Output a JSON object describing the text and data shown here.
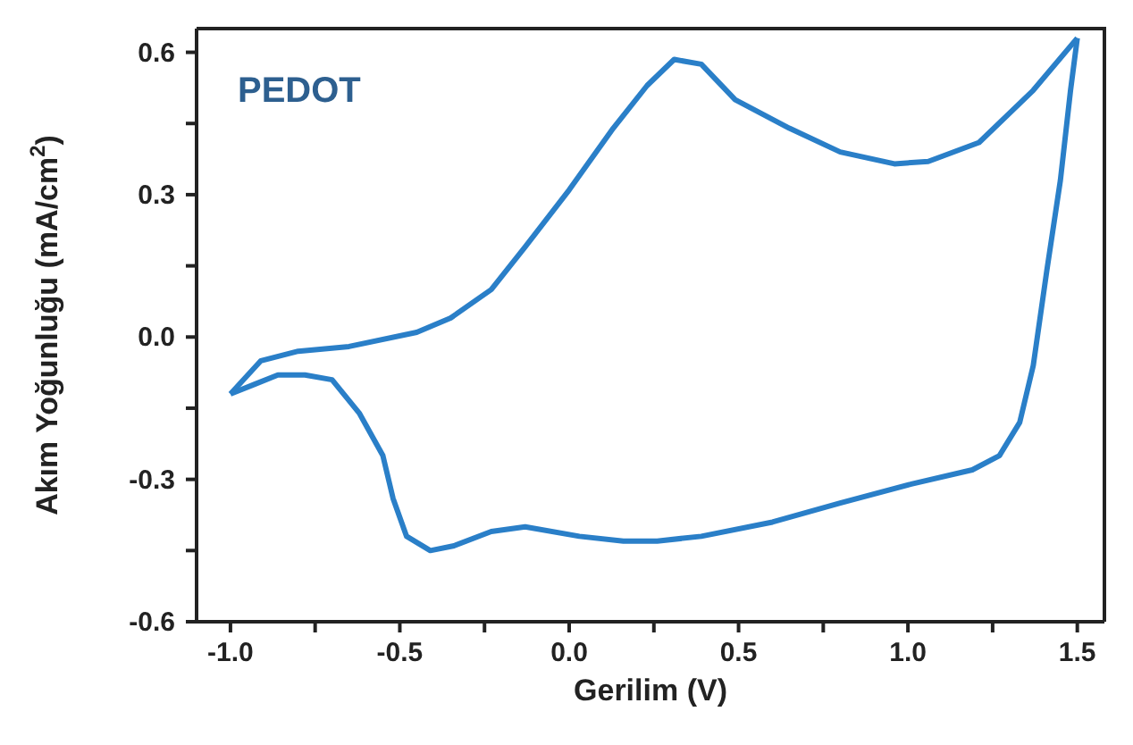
{
  "chart_data": {
    "type": "line",
    "xlabel": "Gerilim (V)",
    "ylabel": "Akım Yoğunluğu (mA/cm$^{2}$)",
    "annotations": [
      "PEDOT"
    ],
    "xlim": [
      -1.1,
      1.58
    ],
    "ylim": [
      -0.6,
      0.65
    ],
    "xticks": [
      {
        "value": -1,
        "label": "-1.0"
      },
      {
        "value": -0.75,
        "label": null
      },
      {
        "value": -0.5,
        "label": "-0.5"
      },
      {
        "value": -0.25,
        "label": null
      },
      {
        "value": 0,
        "label": "0.0"
      },
      {
        "value": 0.25,
        "label": null
      },
      {
        "value": 0.5,
        "label": "0.5"
      },
      {
        "value": 0.75,
        "label": null
      },
      {
        "value": 1,
        "label": "1.0"
      },
      {
        "value": 1.25,
        "label": null
      },
      {
        "value": 1.5,
        "label": "1.5"
      }
    ],
    "yticks": [
      {
        "value": -0.6,
        "label": "-0.6"
      },
      {
        "value": -0.45,
        "label": null
      },
      {
        "value": -0.3,
        "label": "-0.3"
      },
      {
        "value": -0.15,
        "label": null
      },
      {
        "value": 0,
        "label": "0.0"
      },
      {
        "value": 0.15,
        "label": null
      },
      {
        "value": 0.3,
        "label": "0.3"
      },
      {
        "value": 0.45,
        "label": null
      },
      {
        "value": 0.6,
        "label": "0.6"
      }
    ],
    "grid": false,
    "marker": "none",
    "line_style": "solid",
    "series": [
      {
        "color": "#2a7fc8",
        "x": [
          -1.0,
          -0.91,
          -0.8,
          -0.65,
          -0.45,
          -0.35,
          -0.23,
          -0.13,
          0,
          0.13,
          0.23,
          0.31,
          0.39,
          0.49,
          0.65,
          0.8,
          0.96,
          1.06,
          1.21,
          1.37,
          1.5
        ],
        "values": [
          -0.12,
          -0.05,
          -0.03,
          -0.02,
          0.01,
          0.04,
          0.1,
          0.19,
          0.31,
          0.44,
          0.53,
          0.585,
          0.575,
          0.5,
          0.44,
          0.39,
          0.365,
          0.37,
          0.41,
          0.52,
          0.63
        ]
      },
      {
        "color": "#2a7fc8",
        "x": [
          -1.0,
          -0.93,
          -0.86,
          -0.78,
          -0.7,
          -0.62,
          -0.55,
          -0.52,
          -0.48,
          -0.41,
          -0.34,
          -0.23,
          -0.13,
          0.03,
          0.16,
          0.26,
          0.39,
          0.6,
          0.8,
          1.01,
          1.19,
          1.27,
          1.33,
          1.37,
          1.41,
          1.45,
          1.48,
          1.5
        ],
        "values": [
          -0.12,
          -0.1,
          -0.08,
          -0.08,
          -0.09,
          -0.16,
          -0.25,
          -0.34,
          -0.42,
          -0.45,
          -0.44,
          -0.41,
          -0.4,
          -0.42,
          -0.43,
          -0.43,
          -0.42,
          -0.39,
          -0.35,
          -0.31,
          -0.28,
          -0.25,
          -0.18,
          -0.06,
          0.14,
          0.33,
          0.52,
          0.63
        ]
      }
    ]
  }
}
